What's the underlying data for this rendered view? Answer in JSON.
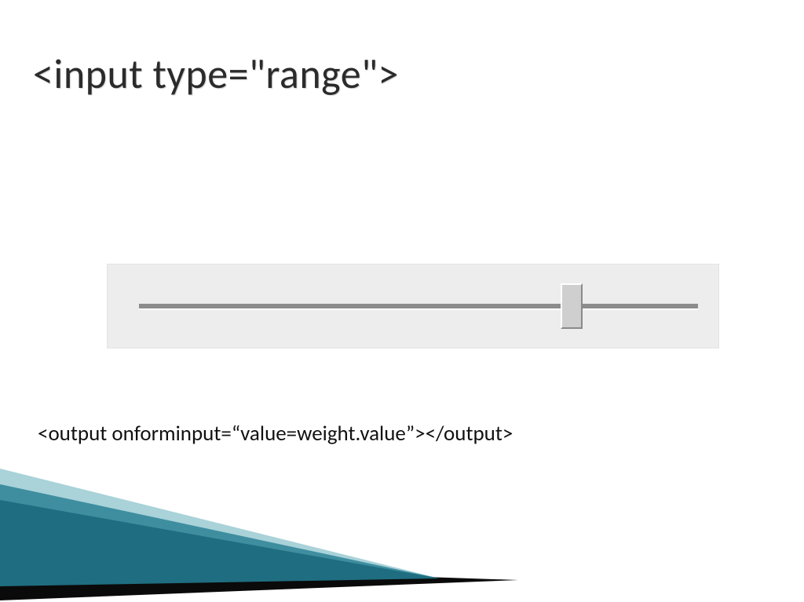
{
  "slide": {
    "title": "<input type=\"range\">",
    "body_text": "<output onforminput=“value=weight.value”></output>",
    "title_color": "#2b2b2b",
    "title_fontsize": 52,
    "body_fontsize": 27,
    "background_color": "#ffffff"
  },
  "slider": {
    "container_bg": "#ededed",
    "container_width": 780,
    "container_height": 108,
    "track_color": "#8c8c8c",
    "track_highlight": "#ffffff",
    "thumb_bg": "#cfcfcf",
    "thumb_light": "#ffffff",
    "thumb_dark": "#8a8a8a",
    "thumb_position_percent": 76,
    "thumb_width": 28,
    "thumb_height": 58
  },
  "decor": {
    "teal_light": "#a9d2d9",
    "teal_mid": "#3e8ea0",
    "teal_dark": "#1f6d80",
    "black": "#0a0a0a"
  }
}
